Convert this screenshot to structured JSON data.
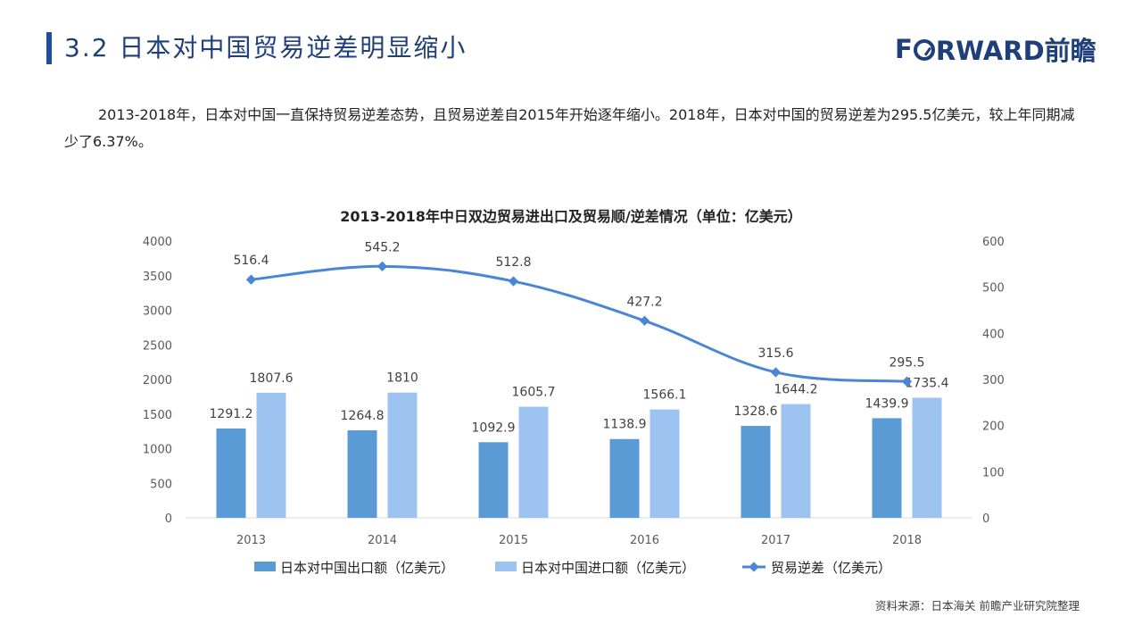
{
  "header": {
    "title": "3.2 日本对中国贸易逆差明显缩小",
    "brand_prefix": "F",
    "brand_suffix": "RWARD前瞻"
  },
  "intro": {
    "text": "2013-2018年，日本对中国一直保持贸易逆差态势，且贸易逆差自2015年开始逐年缩小。2018年，日本对中国的贸易逆差为295.5亿美元，较上年同期减少了6.37%。"
  },
  "chart_data": {
    "type": "bar",
    "title": "2013-2018年中日双边贸易进出口及贸易顺/逆差情况（单位：亿美元）",
    "categories": [
      "2013",
      "2014",
      "2015",
      "2016",
      "2017",
      "2018"
    ],
    "left_axis": {
      "min": 0,
      "max": 4000,
      "ticks": [
        "0",
        "500",
        "1000",
        "1500",
        "2000",
        "2500",
        "3000",
        "3500",
        "4000"
      ]
    },
    "right_axis": {
      "min": 0,
      "max": 600,
      "ticks": [
        "0",
        "100",
        "200",
        "300",
        "400",
        "500",
        "600"
      ]
    },
    "series": [
      {
        "name": "日本对中国出口额（亿美元）",
        "type": "bar",
        "axis": "left",
        "color": "#5b9bd5",
        "values": [
          1291.2,
          1264.8,
          1092.9,
          1138.9,
          1328.6,
          1439.9
        ],
        "labels": [
          "1291.2",
          "1264.8",
          "1092.9",
          "1138.9",
          "1328.6",
          "1439.9"
        ]
      },
      {
        "name": "日本对中国进口额（亿美元）",
        "type": "bar",
        "axis": "left",
        "color": "#9dc3f0",
        "values": [
          1807.6,
          1810,
          1605.7,
          1566.1,
          1644.2,
          1735.4
        ],
        "labels": [
          "1807.6",
          "1810",
          "1605.7",
          "1566.1",
          "1644.2",
          "1735.4"
        ]
      },
      {
        "name": "贸易逆差（亿美元）",
        "type": "line",
        "axis": "right",
        "color": "#4a86d4",
        "values": [
          516.4,
          545.2,
          512.8,
          427.2,
          315.6,
          295.5
        ],
        "labels": [
          "516.4",
          "545.2",
          "512.8",
          "427.2",
          "315.6",
          "295.5"
        ]
      }
    ],
    "grid": false,
    "legend": "bottom"
  },
  "source": "资料来源：日本海关  前瞻产业研究院整理"
}
